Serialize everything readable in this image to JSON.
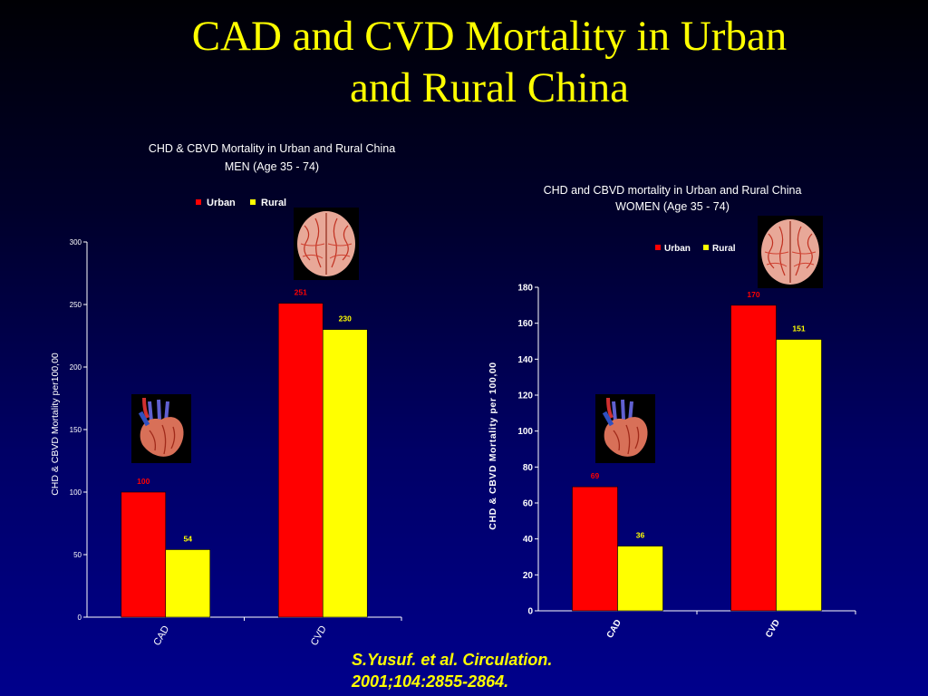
{
  "slide": {
    "title_line1": "CAD and CVD Mortality in Urban",
    "title_line2": "and Rural China",
    "citation_line1": "S.Yusuf. et al.  Circulation.",
    "citation_line2": "2001;104:2855-2864."
  },
  "colors": {
    "urban": "#ff0000",
    "rural": "#ffff00",
    "title": "#ffff00",
    "axis_text": "#ffffff"
  },
  "icons": {
    "cad": "heart-icon",
    "cvd": "brain-icon"
  },
  "chart_data": [
    {
      "type": "bar",
      "title_line1": "CHD & CBVD Mortality in Urban and Rural China",
      "title_line2": "MEN (Age 35 - 74)",
      "ylabel": "CHD & CBVD Mortality per100,00",
      "categories": [
        "CAD",
        "CVD"
      ],
      "ylim": [
        0,
        300
      ],
      "yticks": [
        0,
        50,
        100,
        150,
        200,
        250,
        300
      ],
      "series": [
        {
          "name": "Urban",
          "values": [
            100,
            251
          ]
        },
        {
          "name": "Rural",
          "values": [
            54,
            230
          ]
        }
      ],
      "data_labels": [
        [
          "100",
          "251"
        ],
        [
          "54",
          "230"
        ]
      ],
      "legend": "top"
    },
    {
      "type": "bar",
      "title_line1": "CHD and CBVD mortality in Urban and Rural China",
      "title_line2": "WOMEN (Age 35 - 74)",
      "ylabel": "CHD & CBVD Mortality per 100,00",
      "categories": [
        "CAD",
        "CVD"
      ],
      "ylim": [
        0,
        180
      ],
      "yticks": [
        0,
        20,
        40,
        60,
        80,
        100,
        120,
        140,
        160,
        180
      ],
      "series": [
        {
          "name": "Urban",
          "values": [
            69,
            170
          ]
        },
        {
          "name": "Rural",
          "values": [
            36,
            151
          ]
        }
      ],
      "data_labels": [
        [
          "69",
          "170"
        ],
        [
          "36",
          "151"
        ]
      ],
      "legend": "top"
    }
  ]
}
